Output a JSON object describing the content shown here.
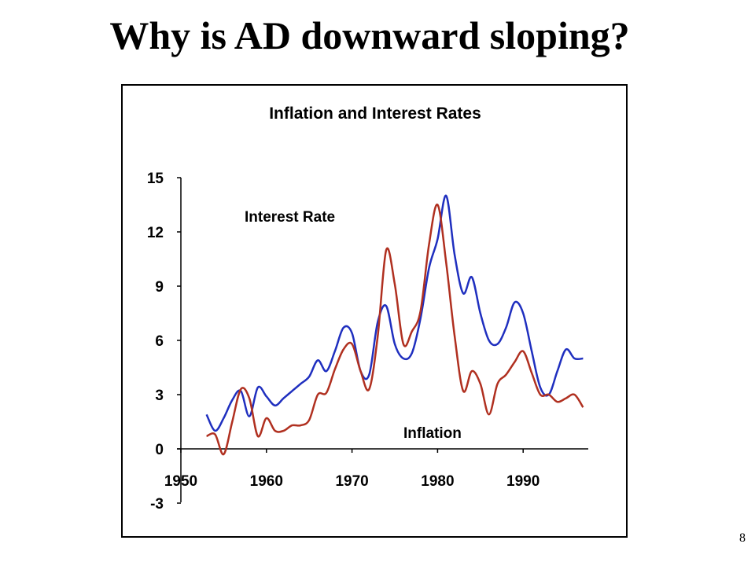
{
  "slide": {
    "title": "Why is AD downward sloping?",
    "page_number": "8"
  },
  "chart_data": {
    "type": "line",
    "title": "Inflation and Interest Rates",
    "xlabel": "",
    "ylabel": "",
    "xlim": [
      1950,
      1998
    ],
    "ylim": [
      -3,
      15
    ],
    "x_ticks": [
      1950,
      1960,
      1970,
      1980,
      1990
    ],
    "y_ticks": [
      15,
      12,
      9,
      6,
      3,
      0,
      -3
    ],
    "grid": false,
    "series": [
      {
        "name": "Interest Rate",
        "color": "#1f2fbf",
        "x": [
          1953,
          1954,
          1955,
          1956,
          1957,
          1958,
          1959,
          1960,
          1961,
          1962,
          1963,
          1964,
          1965,
          1966,
          1967,
          1968,
          1969,
          1970,
          1971,
          1972,
          1973,
          1974,
          1975,
          1976,
          1977,
          1978,
          1979,
          1980,
          1981,
          1982,
          1983,
          1984,
          1985,
          1986,
          1987,
          1988,
          1989,
          1990,
          1991,
          1992,
          1993,
          1994,
          1995,
          1996,
          1997
        ],
        "y": [
          1.9,
          1.0,
          1.7,
          2.7,
          3.2,
          1.8,
          3.4,
          2.9,
          2.4,
          2.8,
          3.2,
          3.6,
          4.0,
          4.9,
          4.3,
          5.4,
          6.7,
          6.4,
          4.3,
          4.1,
          7.0,
          7.9,
          5.8,
          5.0,
          5.3,
          7.2,
          10.0,
          11.6,
          14.0,
          10.7,
          8.6,
          9.5,
          7.5,
          6.0,
          5.8,
          6.7,
          8.1,
          7.5,
          5.4,
          3.4,
          3.0,
          4.3,
          5.5,
          5.0,
          5.0
        ]
      },
      {
        "name": "Inflation",
        "color": "#b03020",
        "x": [
          1953,
          1954,
          1955,
          1956,
          1957,
          1958,
          1959,
          1960,
          1961,
          1962,
          1963,
          1964,
          1965,
          1966,
          1967,
          1968,
          1969,
          1970,
          1971,
          1972,
          1973,
          1974,
          1975,
          1976,
          1977,
          1978,
          1979,
          1980,
          1981,
          1982,
          1983,
          1984,
          1985,
          1986,
          1987,
          1988,
          1989,
          1990,
          1991,
          1992,
          1993,
          1994,
          1995,
          1996,
          1997
        ],
        "y": [
          0.7,
          0.8,
          -0.3,
          1.5,
          3.3,
          2.8,
          0.7,
          1.7,
          1.0,
          1.0,
          1.3,
          1.3,
          1.6,
          3.0,
          3.1,
          4.4,
          5.5,
          5.8,
          4.3,
          3.3,
          6.2,
          11.0,
          9.1,
          5.8,
          6.5,
          7.6,
          11.3,
          13.5,
          10.3,
          6.2,
          3.2,
          4.3,
          3.6,
          1.9,
          3.6,
          4.1,
          4.8,
          5.4,
          4.2,
          3.0,
          3.0,
          2.6,
          2.8,
          3.0,
          2.3
        ]
      }
    ],
    "annotations": [
      {
        "text": "Interest Rate",
        "series": "Interest Rate"
      },
      {
        "text": "Inflation",
        "series": "Inflation"
      }
    ]
  }
}
